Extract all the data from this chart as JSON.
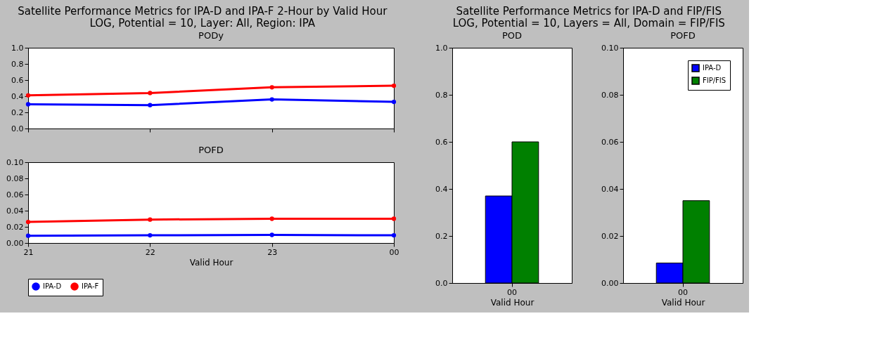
{
  "chart_data": [
    {
      "type": "line",
      "title": "PODy",
      "annotations": [
        "Satellite Performance Metrics for IPA-D and IPA-F 2-Hour by Valid Hour",
        "LOG, Potential = 10, Layer: All, Region: IPA"
      ],
      "categories": [
        "21",
        "22",
        "23",
        "00"
      ],
      "ylim": [
        0,
        1
      ],
      "yticks": [
        {
          "value": 0,
          "label": "0.0"
        },
        0.2,
        0.4,
        0.6,
        0.8,
        {
          "value": 1,
          "label": "1.0"
        }
      ],
      "tick_labels": "y",
      "grid": false,
      "marker": "circle",
      "legend": false,
      "series": [
        {
          "name": "IPA-D",
          "color": "#0000ff",
          "values": [
            0.3,
            0.29,
            0.36,
            0.33
          ]
        },
        {
          "name": "IPA-F",
          "color": "#ff0000",
          "values": [
            0.41,
            0.44,
            0.51,
            0.53
          ]
        }
      ]
    },
    {
      "type": "line",
      "title": "POFD",
      "xlabel": "Valid Hour",
      "categories": [
        "21",
        "22",
        "23",
        "00"
      ],
      "ylim": [
        0,
        0.1
      ],
      "yticks": [
        {
          "value": 0,
          "label": "0.00"
        },
        0.02,
        0.04,
        0.06,
        0.08,
        {
          "value": 0.1,
          "label": "0.10"
        }
      ],
      "grid": false,
      "marker": "circle",
      "legend": "bottom",
      "series": [
        {
          "name": "IPA-D",
          "color": "#0000ff",
          "values": [
            0.009,
            0.0095,
            0.01,
            0.0095
          ]
        },
        {
          "name": "IPA-F",
          "color": "#ff0000",
          "values": [
            0.026,
            0.029,
            0.03,
            0.03
          ]
        }
      ]
    },
    {
      "type": "bar",
      "title": "POD",
      "annotations": [
        "Satellite Performance Metrics for IPA-D and FIP/FIS",
        "LOG, Potential = 10, Layers = All, Domain = FIP/FIS"
      ],
      "xlabel": "Valid Hour",
      "categories": [
        "00"
      ],
      "ylim": [
        0,
        1
      ],
      "yticks": [
        {
          "value": 0,
          "label": "0.0"
        },
        0.2,
        0.4,
        0.6,
        0.8,
        {
          "value": 1,
          "label": "1.0"
        }
      ],
      "grid": false,
      "legend": false,
      "series": [
        {
          "name": "IPA-D",
          "color": "#0000ff",
          "values": [
            0.37
          ]
        },
        {
          "name": "FIP/FIS",
          "color": "#008000",
          "values": [
            0.6
          ]
        }
      ]
    },
    {
      "type": "bar",
      "title": "POFD",
      "xlabel": "Valid Hour",
      "categories": [
        "00"
      ],
      "ylim": [
        0,
        0.1
      ],
      "yticks": [
        {
          "value": 0,
          "label": "0.00"
        },
        0.02,
        0.04,
        0.06,
        0.08,
        {
          "value": 0.1,
          "label": "0.10"
        }
      ],
      "grid": false,
      "legend": "top right",
      "series": [
        {
          "name": "IPA-D",
          "color": "#0000ff",
          "values": [
            0.0085
          ]
        },
        {
          "name": "FIP/FIS",
          "color": "#008000",
          "values": [
            0.035
          ]
        }
      ]
    }
  ]
}
